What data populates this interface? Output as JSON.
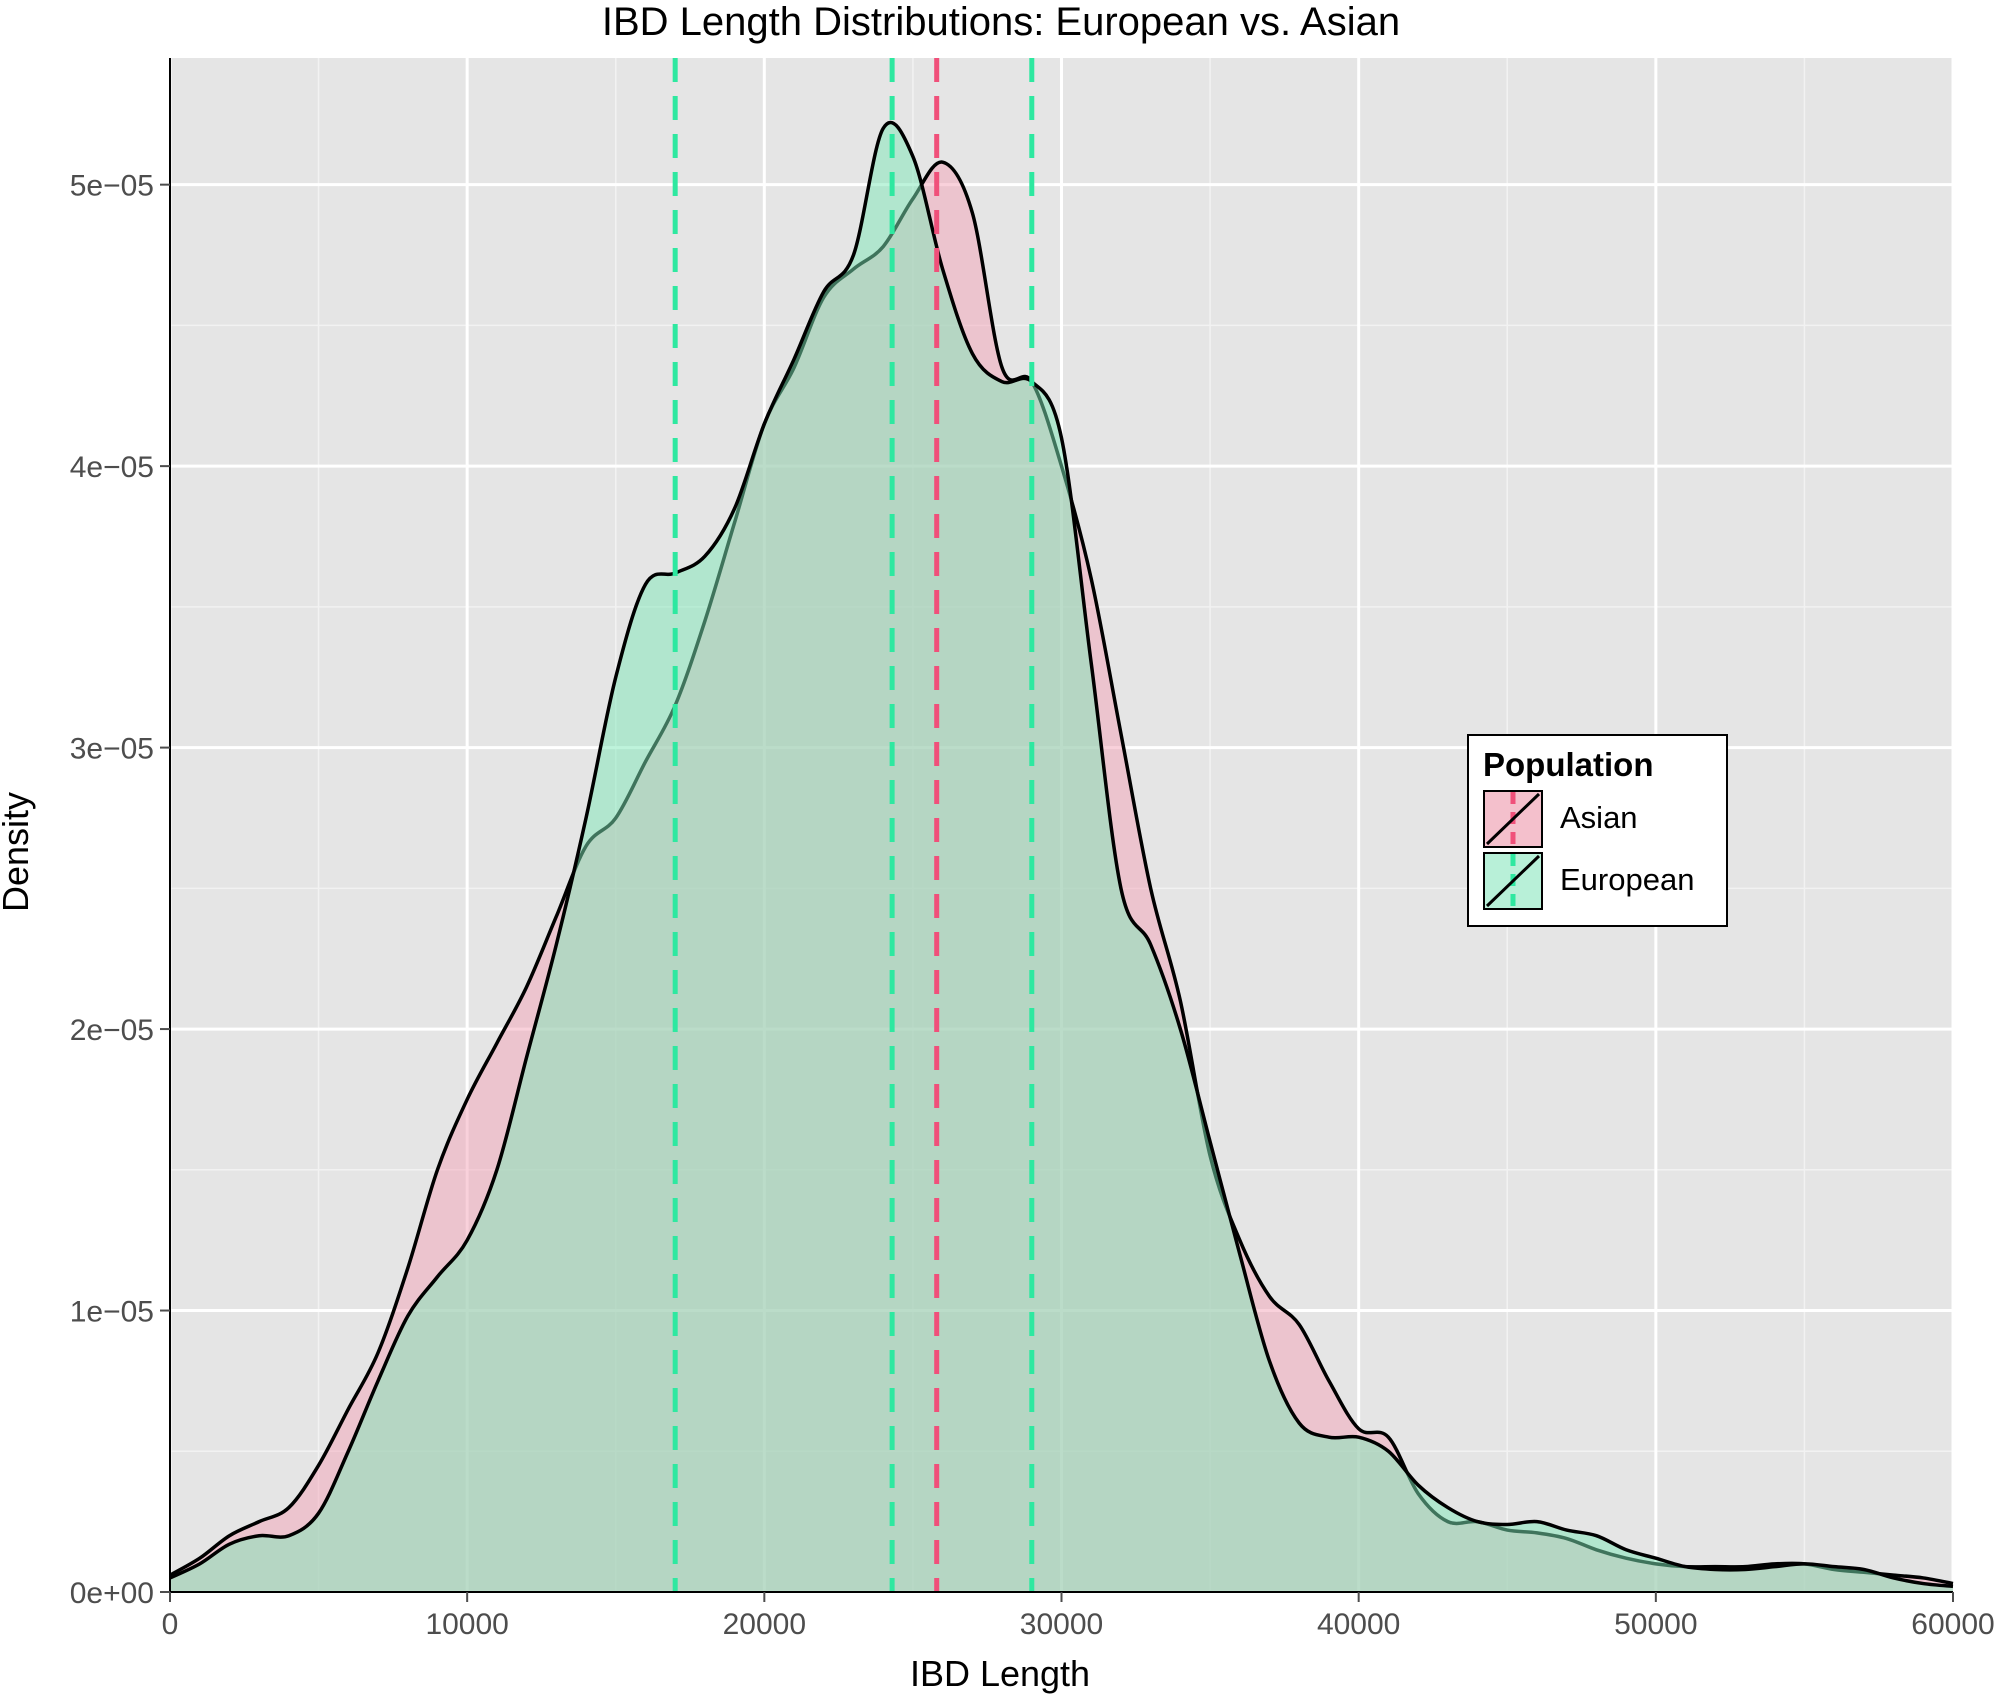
{
  "chart_data": {
    "type": "area",
    "title": "IBD Length Distributions: European vs. Asian",
    "xlabel": "IBD Length",
    "ylabel": "Density",
    "xlim": [
      0,
      60000
    ],
    "ylim": [
      0,
      5.45e-05
    ],
    "x_ticks": [
      0,
      10000,
      20000,
      30000,
      40000,
      50000,
      60000
    ],
    "x_tick_labels": [
      "0",
      "10000",
      "20000",
      "30000",
      "40000",
      "50000",
      "60000"
    ],
    "y_ticks": [
      0,
      1e-05,
      2e-05,
      3e-05,
      4e-05,
      5e-05
    ],
    "y_tick_labels": [
      "0e+00",
      "1e−05",
      "2e−05",
      "3e−05",
      "4e−05",
      "5e−05"
    ],
    "grid": true,
    "legend": {
      "title": "Population",
      "position": "right"
    },
    "series": [
      {
        "name": "Asian",
        "fill": "#f4a3b8",
        "x": [
          0,
          1000,
          2000,
          3000,
          4000,
          5000,
          6000,
          7000,
          8000,
          9000,
          10000,
          11000,
          12000,
          13000,
          14000,
          15000,
          16000,
          17000,
          18000,
          19000,
          20000,
          21000,
          22000,
          23000,
          24000,
          25000,
          26000,
          27000,
          28000,
          29000,
          30000,
          31000,
          32000,
          33000,
          34000,
          35000,
          36000,
          37000,
          38000,
          39000,
          40000,
          41000,
          42000,
          43000,
          44000,
          45000,
          46000,
          47000,
          48000,
          49000,
          50000,
          51000,
          52000,
          53000,
          54000,
          55000,
          56000,
          57000,
          58000,
          59000,
          60000
        ],
        "y": [
          6e-07,
          1.2e-06,
          2e-06,
          2.5e-06,
          3e-06,
          4.5e-06,
          6.5e-06,
          8.5e-06,
          1.15e-05,
          1.5e-05,
          1.75e-05,
          1.95e-05,
          2.15e-05,
          2.4e-05,
          2.65e-05,
          2.75e-05,
          2.95e-05,
          3.15e-05,
          3.45e-05,
          3.8e-05,
          4.15e-05,
          4.35e-05,
          4.6e-05,
          4.7e-05,
          4.78e-05,
          4.95e-05,
          5.08e-05,
          4.9e-05,
          4.35e-05,
          4.3e-05,
          4e-05,
          3.6e-05,
          3.05e-05,
          2.5e-05,
          2.1e-05,
          1.55e-05,
          1.25e-05,
          1.05e-05,
          9.5e-06,
          7.5e-06,
          5.8e-06,
          5.5e-06,
          3.5e-06,
          2.5e-06,
          2.5e-06,
          2.2e-06,
          2.1e-06,
          1.9e-06,
          1.5e-06,
          1.2e-06,
          1e-06,
          9e-07,
          9e-07,
          9e-07,
          1e-06,
          1e-06,
          8e-07,
          7e-07,
          6e-07,
          5e-07,
          3e-07
        ]
      },
      {
        "name": "European",
        "fill": "#7ee8b8",
        "x": [
          0,
          1000,
          2000,
          3000,
          4000,
          5000,
          6000,
          7000,
          8000,
          9000,
          10000,
          11000,
          12000,
          13000,
          14000,
          15000,
          16000,
          17000,
          18000,
          19000,
          20000,
          21000,
          22000,
          23000,
          24000,
          25000,
          26000,
          27000,
          28000,
          29000,
          30000,
          31000,
          32000,
          33000,
          34000,
          35000,
          36000,
          37000,
          38000,
          39000,
          40000,
          41000,
          42000,
          43000,
          44000,
          45000,
          46000,
          47000,
          48000,
          49000,
          50000,
          51000,
          52000,
          53000,
          54000,
          55000,
          56000,
          57000,
          58000,
          59000,
          60000
        ],
        "y": [
          5e-07,
          1e-06,
          1.7e-06,
          2e-06,
          2e-06,
          2.8e-06,
          5e-06,
          7.5e-06,
          9.8e-06,
          1.12e-05,
          1.25e-05,
          1.5e-05,
          1.9e-05,
          2.3e-05,
          2.75e-05,
          3.25e-05,
          3.58e-05,
          3.62e-05,
          3.68e-05,
          3.85e-05,
          4.15e-05,
          4.38e-05,
          4.62e-05,
          4.75e-05,
          5.2e-05,
          5.1e-05,
          4.7e-05,
          4.4e-05,
          4.3e-05,
          4.3e-05,
          4.1e-05,
          3.3e-05,
          2.5e-05,
          2.3e-05,
          2e-05,
          1.6e-05,
          1.2e-05,
          8.2e-06,
          6e-06,
          5.5e-06,
          5.5e-06,
          5e-06,
          3.8e-06,
          3e-06,
          2.5e-06,
          2.4e-06,
          2.5e-06,
          2.2e-06,
          2e-06,
          1.5e-06,
          1.2e-06,
          9e-07,
          8e-07,
          8e-07,
          9e-07,
          1e-06,
          9e-07,
          8e-07,
          5e-07,
          3e-07,
          2e-07
        ]
      }
    ],
    "vlines": [
      {
        "series": "European",
        "x": 17000,
        "color": "#2ee8a0"
      },
      {
        "series": "European",
        "x": 24300,
        "color": "#2ee8a0"
      },
      {
        "series": "Asian",
        "x": 25800,
        "color": "#f0507a"
      },
      {
        "series": "European",
        "x": 29000,
        "color": "#2ee8a0"
      }
    ],
    "legend_entries": [
      {
        "label": "Asian",
        "fill": "#f4c0cc",
        "line": "#f0507a"
      },
      {
        "label": "European",
        "fill": "#b8f0d8",
        "line": "#2ee8a0"
      }
    ]
  }
}
